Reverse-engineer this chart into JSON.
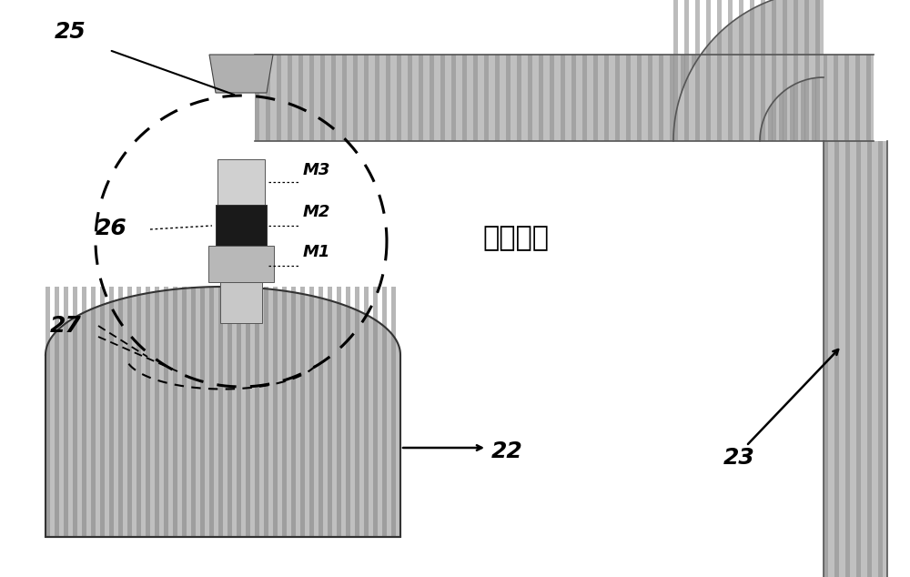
{
  "bg_color": "#ffffff",
  "pipe_fill": "#c8c8c8",
  "pipe_fill_dark": "#a0a0a0",
  "text_color": "#000000",
  "label_25": "25",
  "label_26": "26",
  "label_27": "27",
  "label_22": "22",
  "label_23": "23",
  "label_M1": "M1",
  "label_M2": "M2",
  "label_M3": "M3",
  "label_tech": "现有技术",
  "fs_big": 18,
  "fs_label": 14,
  "fs_m": 13,
  "fs_tech": 22
}
